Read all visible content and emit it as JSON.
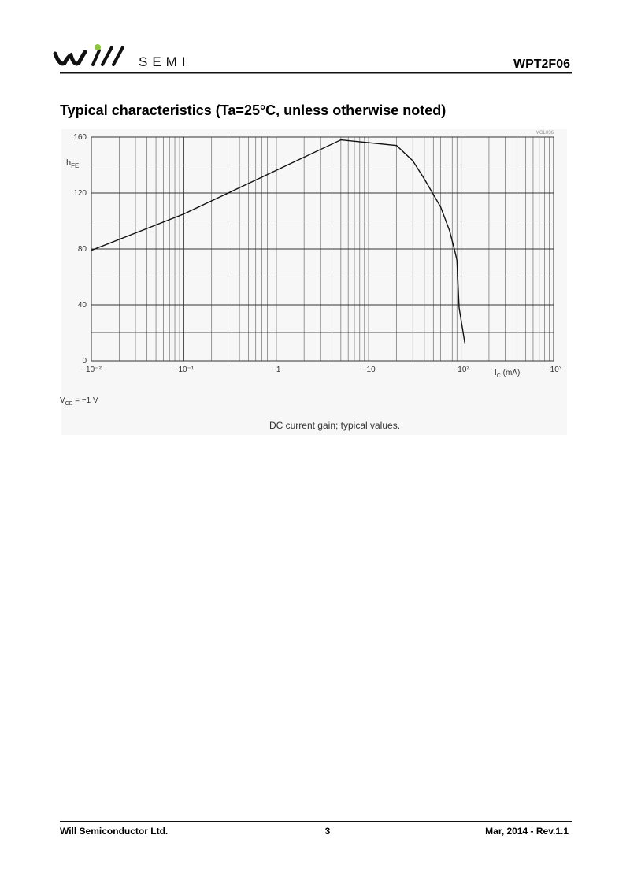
{
  "header": {
    "logo_text": "SEMI",
    "part_number": "WPT2F06"
  },
  "section_title": "Typical characteristics (Ta=25°C, unless otherwise noted)",
  "chart_data": {
    "type": "line",
    "xscale": "log",
    "grid": true,
    "color": "#111111",
    "code": "MGL036",
    "y_label": [
      "h",
      "FE"
    ],
    "x_label": [
      "I",
      "C",
      " (mA)"
    ],
    "condition": [
      "V",
      "CE",
      " = −1 V"
    ],
    "caption": "DC current gain; typical values.",
    "x": [
      -0.01,
      -0.1,
      -5,
      -20,
      -30,
      -40,
      -60,
      -75,
      -85,
      -90,
      -95,
      -110
    ],
    "values": [
      79,
      105,
      158,
      154,
      143,
      130,
      110,
      93,
      79,
      72,
      38,
      12
    ],
    "xlim": [
      -0.01,
      -1000
    ],
    "ylim": [
      0,
      160
    ],
    "xticks": [
      {
        "value": -0.01,
        "label": "−10⁻²"
      },
      {
        "value": -0.1,
        "label": "−10⁻¹"
      },
      {
        "value": -1,
        "label": "−1"
      },
      {
        "value": -10,
        "label": "−10"
      },
      {
        "value": -100,
        "label": "−10²"
      },
      {
        "value": -1000,
        "label": "−10³"
      }
    ],
    "yticks": [
      0,
      40,
      80,
      120,
      160
    ]
  },
  "footer": {
    "company": "Will Semiconductor Ltd.",
    "page": "3",
    "revision": "Mar, 2014 - Rev.1.1"
  }
}
